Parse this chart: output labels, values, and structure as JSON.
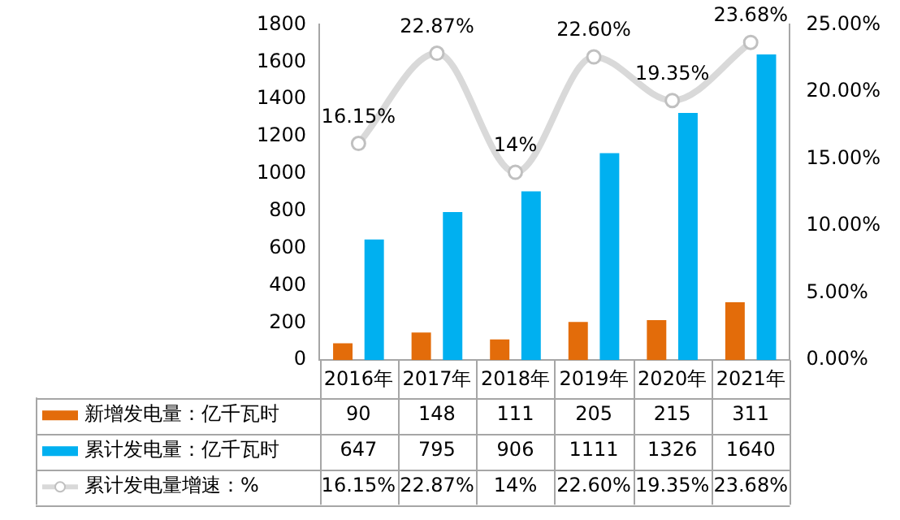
{
  "chart_data": {
    "type": "bar",
    "categories": [
      "2016年",
      "2017年",
      "2018年",
      "2019年",
      "2020年",
      "2021年"
    ],
    "series": [
      {
        "name": "新增发电量：亿千瓦时",
        "color": "#e36c0a",
        "values": [
          90,
          148,
          111,
          205,
          215,
          311
        ],
        "value_labels": [
          "90",
          "148",
          "111",
          "205",
          "215",
          "311"
        ]
      },
      {
        "name": "累计发电量：亿千瓦时",
        "color": "#00b0f0",
        "values": [
          647,
          795,
          906,
          1111,
          1326,
          1640
        ],
        "value_labels": [
          "647",
          "795",
          "906",
          "1111",
          "1326",
          "1640"
        ]
      },
      {
        "name": "累计发电量增速：%",
        "type": "line",
        "axis": "y2",
        "color": "#d9d9d9",
        "values": [
          16.15,
          22.87,
          14,
          22.6,
          19.35,
          23.68
        ],
        "value_labels": [
          "16.15%",
          "22.87%",
          "14%",
          "22.60%",
          "19.35%",
          "23.68%"
        ]
      }
    ],
    "ylim": [
      0,
      1800
    ],
    "yticks": [
      0,
      200,
      400,
      600,
      800,
      1000,
      1200,
      1400,
      1600,
      1800
    ],
    "y2lim": [
      0,
      25
    ],
    "y2ticks": [
      {
        "value": 0,
        "label": "0.00%"
      },
      {
        "value": 5,
        "label": "5.00%"
      },
      {
        "value": 10,
        "label": "10.00%"
      },
      {
        "value": 15,
        "label": "15.00%"
      },
      {
        "value": 20,
        "label": "20.00%"
      },
      {
        "value": 25,
        "label": "25.00%"
      }
    ],
    "grid": false,
    "legend": "bottom",
    "marker": "circle",
    "line_style": "solid"
  }
}
